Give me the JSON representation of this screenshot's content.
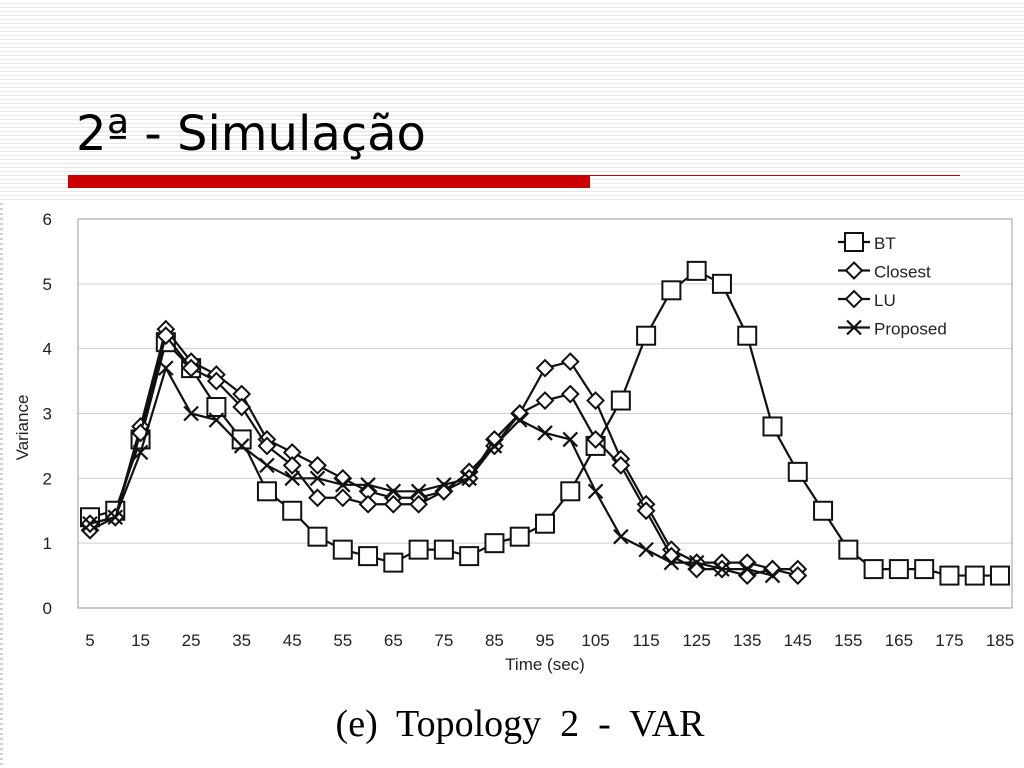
{
  "slide": {
    "title": "2ª - Simulação",
    "accent_color": "#cc0000"
  },
  "caption": "(e)  Topology  2  -  VAR",
  "chart_data": {
    "type": "line",
    "xlabel": "Time (sec)",
    "ylabel": "Variance",
    "xlim": [
      5,
      185
    ],
    "ylim": [
      0,
      6
    ],
    "yticks": [
      0,
      1,
      2,
      3,
      4,
      5,
      6
    ],
    "xticks": [
      5,
      15,
      25,
      35,
      45,
      55,
      65,
      75,
      85,
      95,
      105,
      115,
      125,
      135,
      145,
      155,
      165,
      175,
      185
    ],
    "grid": true,
    "legend_position": "top-right",
    "series": [
      {
        "name": "BT",
        "marker": "square",
        "x": [
          5,
          10,
          15,
          20,
          25,
          30,
          35,
          40,
          45,
          50,
          55,
          60,
          65,
          70,
          75,
          80,
          85,
          90,
          95,
          100,
          105,
          110,
          115,
          120,
          125,
          130,
          135,
          140,
          145,
          150,
          155,
          160,
          165,
          170,
          175,
          180,
          185
        ],
        "y": [
          1.4,
          1.5,
          2.6,
          4.1,
          3.7,
          3.1,
          2.6,
          1.8,
          1.5,
          1.1,
          0.9,
          0.8,
          0.7,
          0.9,
          0.9,
          0.8,
          1.0,
          1.1,
          1.3,
          1.8,
          2.5,
          3.2,
          4.2,
          4.9,
          5.2,
          5.0,
          4.2,
          2.8,
          2.1,
          1.5,
          0.9,
          0.6,
          0.6,
          0.6,
          0.5,
          0.5,
          0.5
        ]
      },
      {
        "name": "Closest",
        "marker": "diamond",
        "x": [
          5,
          10,
          15,
          20,
          25,
          30,
          35,
          40,
          45,
          50,
          55,
          60,
          65,
          70,
          75,
          80,
          85,
          90,
          95,
          100,
          105,
          110,
          115,
          120,
          125,
          130,
          135,
          140,
          145
        ],
        "y": [
          1.2,
          1.4,
          2.8,
          4.3,
          3.8,
          3.6,
          3.3,
          2.6,
          2.4,
          2.2,
          2.0,
          1.8,
          1.7,
          1.7,
          1.8,
          2.1,
          2.5,
          3.0,
          3.7,
          3.8,
          3.2,
          2.3,
          1.6,
          0.9,
          0.7,
          0.7,
          0.7,
          0.6,
          0.6
        ]
      },
      {
        "name": "LU",
        "marker": "diamond",
        "x": [
          5,
          10,
          15,
          20,
          25,
          30,
          35,
          40,
          45,
          50,
          55,
          60,
          65,
          70,
          75,
          80,
          85,
          90,
          95,
          100,
          105,
          110,
          115,
          120,
          125,
          130,
          135,
          140,
          145
        ],
        "y": [
          1.3,
          1.4,
          2.7,
          4.2,
          3.7,
          3.5,
          3.1,
          2.5,
          2.2,
          1.7,
          1.7,
          1.6,
          1.6,
          1.6,
          1.8,
          2.0,
          2.6,
          3.0,
          3.2,
          3.3,
          2.6,
          2.2,
          1.5,
          0.8,
          0.6,
          0.6,
          0.5,
          0.6,
          0.5
        ]
      },
      {
        "name": "Proposed",
        "marker": "x",
        "x": [
          5,
          10,
          15,
          20,
          25,
          30,
          35,
          40,
          45,
          50,
          55,
          60,
          65,
          70,
          75,
          80,
          85,
          90,
          95,
          100,
          105,
          110,
          115,
          120,
          125,
          130,
          135,
          140
        ],
        "y": [
          1.3,
          1.4,
          2.4,
          3.7,
          3.0,
          2.9,
          2.5,
          2.2,
          2.0,
          2.0,
          1.9,
          1.9,
          1.8,
          1.8,
          1.9,
          2.0,
          2.5,
          2.9,
          2.7,
          2.6,
          1.8,
          1.1,
          0.9,
          0.7,
          0.7,
          0.6,
          0.6,
          0.5
        ]
      }
    ]
  }
}
